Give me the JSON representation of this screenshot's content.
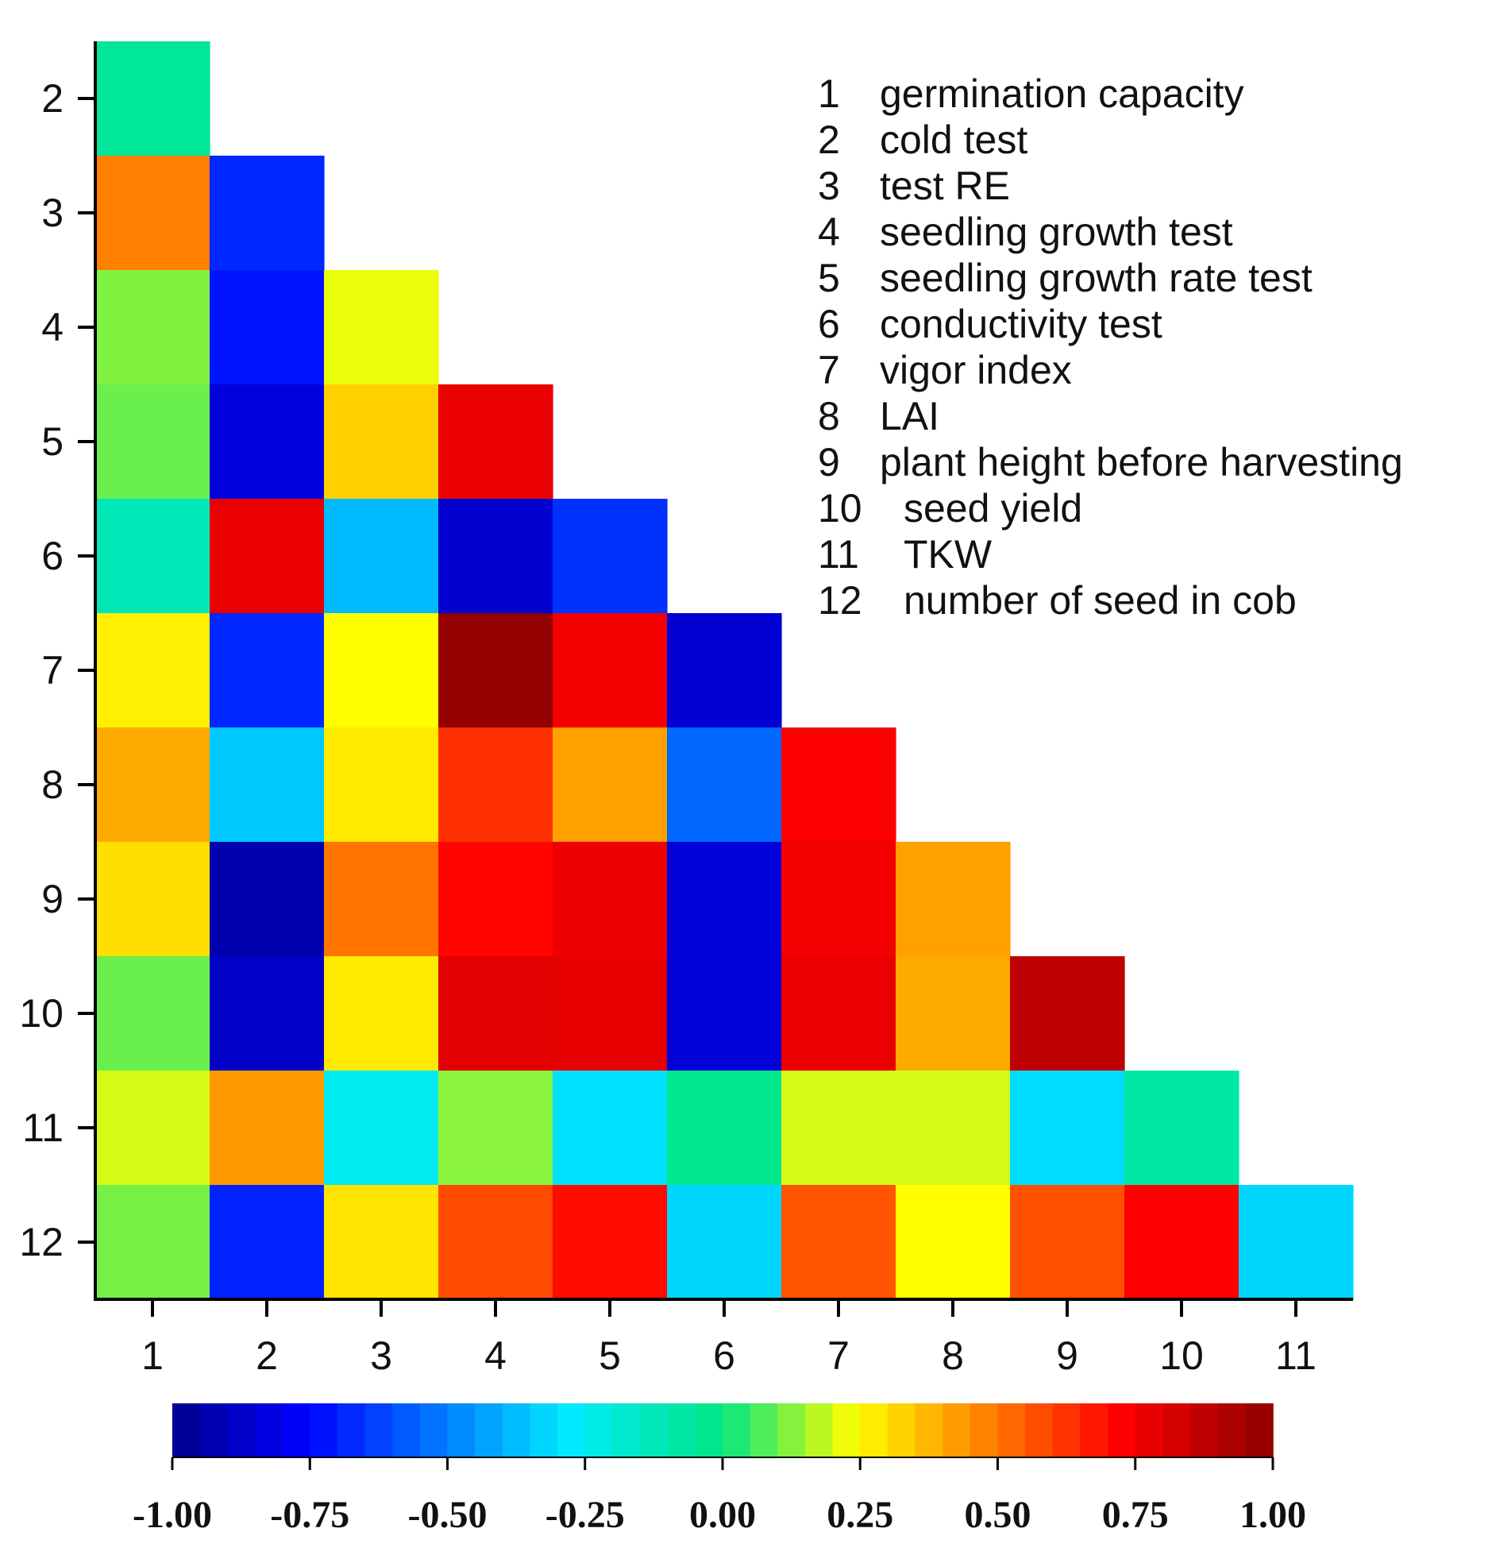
{
  "chart_data": {
    "type": "heatmap",
    "title": "",
    "xlabel": "",
    "ylabel": "",
    "x_categories": [
      "1",
      "2",
      "3",
      "4",
      "5",
      "6",
      "7",
      "8",
      "9",
      "10",
      "11"
    ],
    "y_categories": [
      "2",
      "3",
      "4",
      "5",
      "6",
      "7",
      "8",
      "9",
      "10",
      "11",
      "12"
    ],
    "matrix": [
      [
        -0.05
      ],
      [
        0.48,
        -0.68
      ],
      [
        0.12,
        -0.72,
        0.22
      ],
      [
        0.1,
        -0.83,
        0.33,
        0.77
      ],
      [
        -0.12,
        0.77,
        -0.38,
        -0.86,
        -0.66
      ],
      [
        0.27,
        -0.68,
        0.24,
        0.98,
        0.75,
        -0.85
      ],
      [
        0.4,
        -0.35,
        0.28,
        0.63,
        0.42,
        -0.55,
        0.73
      ],
      [
        0.3,
        -0.93,
        0.5,
        0.71,
        0.76,
        -0.84,
        0.75,
        0.42
      ],
      [
        0.1,
        -0.88,
        0.28,
        0.79,
        0.78,
        -0.84,
        0.77,
        0.4,
        0.88
      ],
      [
        0.2,
        0.43,
        -0.25,
        0.13,
        -0.3,
        -0.03,
        0.2,
        0.2,
        -0.31,
        -0.08
      ],
      [
        0.11,
        -0.69,
        0.29,
        0.58,
        0.7,
        -0.32,
        0.56,
        0.24,
        0.57,
        0.72,
        -0.32
      ]
    ],
    "colorbar": {
      "min": -1.0,
      "max": 1.0,
      "ticks": [
        "-1.00",
        "-0.75",
        "-0.50",
        "-0.25",
        "0.00",
        "0.25",
        "0.50",
        "0.75",
        "1.00"
      ],
      "orientation": "horizontal"
    },
    "legend": [
      {
        "num": "1",
        "label": "germination capacity"
      },
      {
        "num": "2",
        "label": "cold test"
      },
      {
        "num": "3",
        "label": "test RE"
      },
      {
        "num": "4",
        "label": "seedling growth test"
      },
      {
        "num": "5",
        "label": "seedling growth rate test"
      },
      {
        "num": "6",
        "label": "conductivity test"
      },
      {
        "num": "7",
        "label": "vigor index"
      },
      {
        "num": "8",
        "label": "LAI"
      },
      {
        "num": "9",
        "label": "plant height before harvesting"
      },
      {
        "num": "10",
        "label": "seed yield"
      },
      {
        "num": "11",
        "label": "TKW"
      },
      {
        "num": "12",
        "label": "number of seed in cob"
      }
    ],
    "legend_position": "top-right",
    "colormap": "jet"
  }
}
